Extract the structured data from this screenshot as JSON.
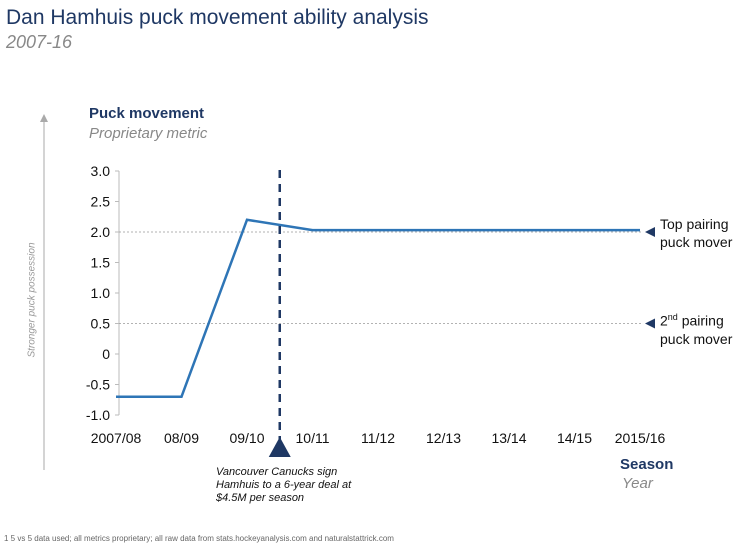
{
  "title": "Dan Hamhuis puck movement ability analysis",
  "subtitle": "2007-16",
  "side_label": "Stronger puck possession",
  "footnote": "1 5 vs 5 data used; all metrics proprietary; all raw data from stats.hockeyanalysis.com and naturalstattrick.com",
  "colors": {
    "line": "#2e75b6",
    "accent": "#1f3864"
  },
  "chart_data": {
    "type": "line",
    "title": "Puck movement",
    "ylabel": "Puck movement",
    "ylabel_sub": "Proprietary metric",
    "xlabel": "Season",
    "xlabel_sub": "Year",
    "categories": [
      "2007/08",
      "08/09",
      "09/10",
      "10/11",
      "11/12",
      "12/13",
      "13/14",
      "14/15",
      "2015/16"
    ],
    "series": [
      {
        "name": "Dan Hamhuis",
        "values": [
          -0.7,
          -0.7,
          2.2,
          2.03,
          2.03,
          2.03,
          2.03,
          2.03,
          2.03
        ]
      }
    ],
    "yticks": [
      "3.0",
      "2.5",
      "2.0",
      "1.5",
      "1.0",
      "0.5",
      "0",
      "-0.5",
      "-1.0"
    ],
    "ylim": [
      -1.0,
      3.0
    ],
    "reference_lines": [
      {
        "value": 2.0,
        "label_line1": "Top pairing",
        "label_line2": "puck mover"
      },
      {
        "value": 0.5,
        "label_line1": "2",
        "label_sup": "nd",
        "label_line1b": " pairing",
        "label_line2": "puck mover"
      }
    ],
    "event": {
      "position": 2.5,
      "text": "Vancouver Canucks sign Hamhuis to a 6-year deal at $4.5M per season"
    }
  }
}
